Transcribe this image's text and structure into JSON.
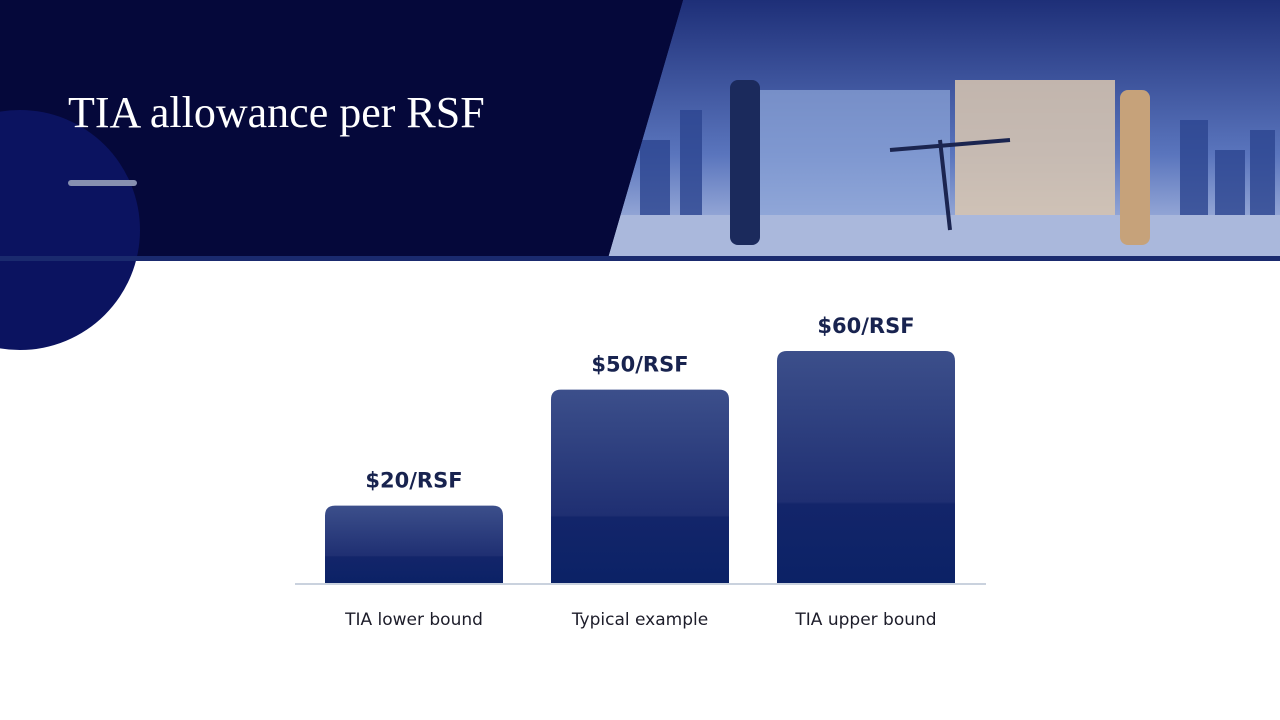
{
  "chart_data": {
    "type": "bar",
    "title": "TIA allowance per RSF",
    "categories": [
      "TIA lower bound",
      "Typical example",
      "TIA upper bound"
    ],
    "values": [
      20,
      50,
      60
    ],
    "value_labels": [
      "$20/RSF",
      "$50/RSF",
      "$60/RSF"
    ],
    "color": "#1a2f72"
  }
}
